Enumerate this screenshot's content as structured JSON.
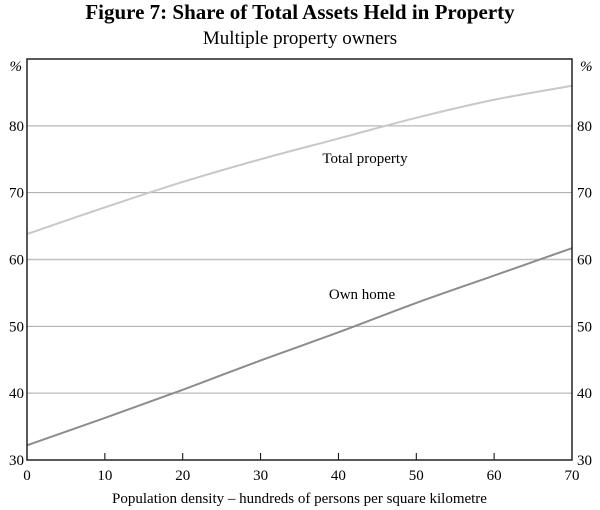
{
  "chart_data": {
    "type": "line",
    "title": "Figure 7: Share of Total Assets Held in Property",
    "subtitle": "Multiple property owners",
    "xlabel": "Population density – hundreds of persons per square kilometre",
    "ylabel": "%",
    "xlim": [
      0,
      70
    ],
    "ylim": [
      30,
      90
    ],
    "xticks": [
      "0",
      "10",
      "20",
      "30",
      "40",
      "50",
      "60",
      "70"
    ],
    "yticks": [
      "30",
      "40",
      "50",
      "60",
      "70",
      "80"
    ],
    "grid": true,
    "x": [
      0,
      10,
      20,
      30,
      40,
      50,
      60,
      70
    ],
    "series": [
      {
        "name": "Total property",
        "color": "#c8c8c8",
        "values": [
          63.8,
          67.8,
          71.6,
          75.0,
          78.1,
          81.2,
          83.9,
          86.0
        ]
      },
      {
        "name": "Own home",
        "color": "#8c8c8c",
        "values": [
          32.2,
          36.3,
          40.5,
          44.9,
          49.1,
          53.5,
          57.6,
          61.7
        ]
      }
    ]
  }
}
